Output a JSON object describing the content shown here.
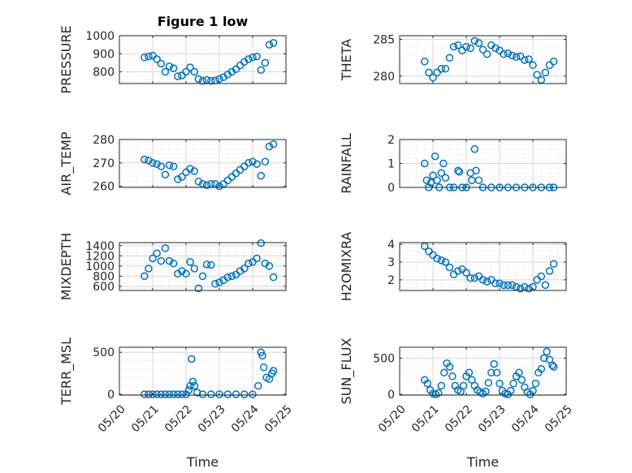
{
  "figure": {
    "title": "Figure 1 low",
    "colors": {
      "marker": "#0072BD",
      "axis": "#262626",
      "grid": "#d9d9d9",
      "minor_grid": "#ececec"
    }
  },
  "chart_data": [
    {
      "id": "pressure",
      "type": "scatter",
      "marker": "circle",
      "title": "Figure 1 low",
      "ylabel": "PRESSURE",
      "xlabel": "",
      "xlim": [
        "05/20",
        "05/25"
      ],
      "ylim": [
        735,
        1000
      ],
      "yticks": [
        800,
        900,
        1000
      ],
      "ytick_labels": [
        "800",
        "900",
        "1000"
      ],
      "xticks": [
        "05/20",
        "05/21",
        "05/22",
        "05/23",
        "05/24",
        "05/25"
      ],
      "show_xtick_labels": false,
      "grid": true,
      "minor_grid": true,
      "x": [
        "05/20 18:00",
        "05/20 21:00",
        "05/21 00:00",
        "05/21 03:00",
        "05/21 06:00",
        "05/21 09:00",
        "05/21 12:00",
        "05/21 15:00",
        "05/21 18:00",
        "05/21 21:00",
        "05/22 00:00",
        "05/22 03:00",
        "05/22 06:00",
        "05/22 09:00",
        "05/22 12:00",
        "05/22 15:00",
        "05/22 18:00",
        "05/22 21:00",
        "05/23 00:00",
        "05/23 03:00",
        "05/23 06:00",
        "05/23 09:00",
        "05/23 12:00",
        "05/23 15:00",
        "05/23 18:00",
        "05/23 21:00",
        "05/24 00:00",
        "05/24 03:00",
        "05/24 06:00",
        "05/24 09:00",
        "05/24 12:00",
        "05/24 15:00"
      ],
      "y": [
        880,
        885,
        890,
        870,
        845,
        800,
        830,
        820,
        775,
        780,
        800,
        825,
        800,
        760,
        750,
        755,
        750,
        752,
        760,
        770,
        785,
        800,
        815,
        835,
        855,
        870,
        880,
        885,
        810,
        850,
        950,
        960
      ]
    },
    {
      "id": "theta",
      "type": "scatter",
      "marker": "circle",
      "title": "",
      "ylabel": "THETA",
      "xlabel": "",
      "xlim": [
        "05/20",
        "05/25"
      ],
      "ylim": [
        279,
        285.5
      ],
      "yticks": [
        280,
        285
      ],
      "ytick_labels": [
        "280",
        "285"
      ],
      "xticks": [
        "05/20",
        "05/21",
        "05/22",
        "05/23",
        "05/24",
        "05/25"
      ],
      "show_xtick_labels": false,
      "grid": true,
      "minor_grid": true,
      "x": [
        "05/20 18:00",
        "05/20 21:00",
        "05/21 00:00",
        "05/21 03:00",
        "05/21 06:00",
        "05/21 09:00",
        "05/21 12:00",
        "05/21 15:00",
        "05/21 18:00",
        "05/21 21:00",
        "05/22 00:00",
        "05/22 03:00",
        "05/22 06:00",
        "05/22 09:00",
        "05/22 12:00",
        "05/22 15:00",
        "05/22 18:00",
        "05/22 21:00",
        "05/23 00:00",
        "05/23 03:00",
        "05/23 06:00",
        "05/23 09:00",
        "05/23 12:00",
        "05/23 15:00",
        "05/23 18:00",
        "05/23 21:00",
        "05/24 00:00",
        "05/24 03:00",
        "05/24 06:00",
        "05/24 09:00",
        "05/24 12:00",
        "05/24 15:00"
      ],
      "y": [
        282,
        280.5,
        279.8,
        280.5,
        281,
        281,
        282.5,
        284,
        284.2,
        283.5,
        284,
        283.8,
        284.8,
        284.5,
        283.6,
        283,
        284.2,
        283.8,
        283.5,
        283,
        283.1,
        282.8,
        282.6,
        282.7,
        282.2,
        282.3,
        281.5,
        280.2,
        279.5,
        280.5,
        281.5,
        282
      ]
    },
    {
      "id": "air_temp",
      "type": "scatter",
      "marker": "circle",
      "title": "",
      "ylabel": "AIR_TEMP",
      "xlabel": "",
      "xlim": [
        "05/20",
        "05/25"
      ],
      "ylim": [
        259.5,
        280
      ],
      "yticks": [
        260,
        270,
        280
      ],
      "ytick_labels": [
        "260",
        "270",
        "280"
      ],
      "xticks": [
        "05/20",
        "05/21",
        "05/22",
        "05/23",
        "05/24",
        "05/25"
      ],
      "show_xtick_labels": false,
      "grid": true,
      "minor_grid": true,
      "x": [
        "05/20 18:00",
        "05/20 21:00",
        "05/21 00:00",
        "05/21 03:00",
        "05/21 06:00",
        "05/21 09:00",
        "05/21 12:00",
        "05/21 15:00",
        "05/21 18:00",
        "05/21 21:00",
        "05/22 00:00",
        "05/22 03:00",
        "05/22 06:00",
        "05/22 09:00",
        "05/22 12:00",
        "05/22 15:00",
        "05/22 18:00",
        "05/22 21:00",
        "05/23 00:00",
        "05/23 03:00",
        "05/23 06:00",
        "05/23 09:00",
        "05/23 12:00",
        "05/23 15:00",
        "05/23 18:00",
        "05/23 21:00",
        "05/24 00:00",
        "05/24 03:00",
        "05/24 06:00",
        "05/24 09:00",
        "05/24 12:00",
        "05/24 15:00"
      ],
      "y": [
        271.5,
        271,
        270,
        269.5,
        268.5,
        265,
        269,
        268.5,
        263,
        264,
        266,
        267.5,
        266.5,
        262,
        261,
        260.5,
        261,
        261,
        260,
        261,
        262.5,
        264,
        265.5,
        267,
        268.5,
        270,
        270.5,
        269.5,
        264.5,
        270.5,
        277,
        278
      ]
    },
    {
      "id": "rainfall",
      "type": "scatter",
      "marker": "circle",
      "title": "",
      "ylabel": "RAINFALL",
      "xlabel": "",
      "xlim": [
        "05/20",
        "05/25"
      ],
      "ylim": [
        0,
        2
      ],
      "yticks": [
        0,
        1,
        2
      ],
      "ytick_labels": [
        "0",
        "1",
        "2"
      ],
      "xticks": [
        "05/20",
        "05/21",
        "05/22",
        "05/23",
        "05/24",
        "05/25"
      ],
      "show_xtick_labels": false,
      "grid": true,
      "minor_grid": true,
      "x": [
        "05/20 18:00",
        "05/20 19:30",
        "05/20 21:00",
        "05/20 22:30",
        "05/21 00:00",
        "05/21 01:30",
        "05/21 03:00",
        "05/21 04:30",
        "05/21 06:00",
        "05/21 07:30",
        "05/21 09:00",
        "05/21 12:00",
        "05/21 15:00",
        "05/21 18:00",
        "05/21 19:00",
        "05/21 21:00",
        "05/22 00:00",
        "05/22 03:00",
        "05/22 04:00",
        "05/22 06:00",
        "05/22 07:00",
        "05/22 09:00",
        "05/22 12:00",
        "05/22 18:00",
        "05/23 00:00",
        "05/23 06:00",
        "05/23 12:00",
        "05/23 18:00",
        "05/24 00:00",
        "05/24 06:00",
        "05/24 12:00",
        "05/24 15:00"
      ],
      "y": [
        1.0,
        0.3,
        0,
        0.2,
        0.5,
        1.3,
        0.3,
        0,
        0.6,
        1.0,
        0.4,
        0,
        0,
        0.7,
        0.65,
        0,
        0,
        0.6,
        0.3,
        1.6,
        0.7,
        0.3,
        0,
        0,
        0,
        0,
        0,
        0,
        0,
        0,
        0,
        0
      ]
    },
    {
      "id": "mixdepth",
      "type": "scatter",
      "marker": "circle",
      "title": "",
      "ylabel": "MIXDEPTH",
      "xlabel": "",
      "xlim": [
        "05/20",
        "05/25"
      ],
      "ylim": [
        520,
        1460
      ],
      "yticks": [
        600,
        800,
        1000,
        1200,
        1400
      ],
      "ytick_labels": [
        "600",
        "800",
        "1000",
        "1200",
        "1400"
      ],
      "xticks": [
        "05/20",
        "05/21",
        "05/22",
        "05/23",
        "05/24",
        "05/25"
      ],
      "show_xtick_labels": false,
      "grid": true,
      "minor_grid": true,
      "x": [
        "05/20 18:00",
        "05/20 21:00",
        "05/21 00:00",
        "05/21 03:00",
        "05/21 06:00",
        "05/21 09:00",
        "05/21 12:00",
        "05/21 15:00",
        "05/21 18:00",
        "05/21 21:00",
        "05/22 00:00",
        "05/22 03:00",
        "05/22 06:00",
        "05/22 09:00",
        "05/22 12:00",
        "05/22 15:00",
        "05/22 18:00",
        "05/22 21:00",
        "05/23 00:00",
        "05/23 03:00",
        "05/23 06:00",
        "05/23 09:00",
        "05/23 12:00",
        "05/23 15:00",
        "05/23 18:00",
        "05/23 21:00",
        "05/24 00:00",
        "05/24 03:00",
        "05/24 06:00",
        "05/24 09:00",
        "05/24 12:00",
        "05/24 15:00"
      ],
      "y": [
        800,
        950,
        1150,
        1250,
        1100,
        1350,
        1100,
        1050,
        850,
        900,
        850,
        1080,
        950,
        560,
        800,
        1030,
        1020,
        650,
        680,
        720,
        780,
        800,
        830,
        900,
        950,
        1050,
        1080,
        1150,
        1450,
        1050,
        1000,
        780
      ]
    },
    {
      "id": "h2omixra",
      "type": "scatter",
      "marker": "circle",
      "title": "",
      "ylabel": "H2OMIXRA",
      "xlabel": "",
      "xlim": [
        "05/20",
        "05/25"
      ],
      "ylim": [
        1.4,
        4.1
      ],
      "yticks": [
        2,
        3,
        4
      ],
      "ytick_labels": [
        "2",
        "3",
        "4"
      ],
      "xticks": [
        "05/20",
        "05/21",
        "05/22",
        "05/23",
        "05/24",
        "05/25"
      ],
      "show_xtick_labels": false,
      "grid": true,
      "minor_grid": true,
      "x": [
        "05/20 18:00",
        "05/20 21:00",
        "05/21 00:00",
        "05/21 03:00",
        "05/21 06:00",
        "05/21 09:00",
        "05/21 12:00",
        "05/21 15:00",
        "05/21 18:00",
        "05/21 21:00",
        "05/22 00:00",
        "05/22 03:00",
        "05/22 06:00",
        "05/22 09:00",
        "05/22 12:00",
        "05/22 15:00",
        "05/22 18:00",
        "05/22 21:00",
        "05/23 00:00",
        "05/23 03:00",
        "05/23 06:00",
        "05/23 09:00",
        "05/23 12:00",
        "05/23 15:00",
        "05/23 18:00",
        "05/23 21:00",
        "05/24 00:00",
        "05/24 03:00",
        "05/24 06:00",
        "05/24 09:00",
        "05/24 12:00",
        "05/24 15:00"
      ],
      "y": [
        3.9,
        3.6,
        3.4,
        3.2,
        3.1,
        3.0,
        2.7,
        2.3,
        2.5,
        2.6,
        2.4,
        2.1,
        2.1,
        2.2,
        2.0,
        1.9,
        2.0,
        1.8,
        1.8,
        1.7,
        1.7,
        1.7,
        1.6,
        1.5,
        1.6,
        1.5,
        1.6,
        2.0,
        2.2,
        1.7,
        2.5,
        2.9
      ]
    },
    {
      "id": "terr_msl",
      "type": "scatter",
      "marker": "circle",
      "title": "",
      "ylabel": "TERR_MSL",
      "xlabel": "Time",
      "xlim": [
        "05/20",
        "05/25"
      ],
      "ylim": [
        -10,
        560
      ],
      "yticks": [
        0,
        500
      ],
      "ytick_labels": [
        "0",
        "500"
      ],
      "xticks": [
        "05/20",
        "05/21",
        "05/22",
        "05/23",
        "05/24",
        "05/25"
      ],
      "show_xtick_labels": true,
      "grid": true,
      "minor_grid": true,
      "x": [
        "05/20 18:00",
        "05/20 21:00",
        "05/21 00:00",
        "05/21 03:00",
        "05/21 06:00",
        "05/21 09:00",
        "05/21 12:00",
        "05/21 15:00",
        "05/21 18:00",
        "05/21 21:00",
        "05/22 00:00",
        "05/22 02:00",
        "05/22 03:00",
        "05/22 04:00",
        "05/22 05:00",
        "05/22 06:00",
        "05/22 08:00",
        "05/22 12:00",
        "05/22 18:00",
        "05/23 00:00",
        "05/23 06:00",
        "05/23 12:00",
        "05/23 18:00",
        "05/24 00:00",
        "05/24 04:00",
        "05/24 06:00",
        "05/24 07:00",
        "05/24 08:00",
        "05/24 10:00",
        "05/24 12:00",
        "05/24 14:00",
        "05/24 15:00"
      ],
      "y": [
        0,
        0,
        0,
        0,
        0,
        0,
        0,
        0,
        0,
        0,
        0,
        50,
        100,
        420,
        150,
        100,
        20,
        0,
        0,
        0,
        0,
        0,
        0,
        0,
        100,
        500,
        460,
        320,
        200,
        180,
        250,
        280
      ]
    },
    {
      "id": "sun_flux",
      "type": "scatter",
      "marker": "circle",
      "title": "",
      "ylabel": "SUN_FLUX",
      "xlabel": "Time",
      "xlim": [
        "05/20",
        "05/25"
      ],
      "ylim": [
        -10,
        650
      ],
      "yticks": [
        0,
        500
      ],
      "ytick_labels": [
        "0",
        "500"
      ],
      "xticks": [
        "05/20",
        "05/21",
        "05/22",
        "05/23",
        "05/24",
        "05/25"
      ],
      "show_xtick_labels": true,
      "grid": true,
      "minor_grid": true,
      "x": [
        "05/20 18:00",
        "05/20 20:00",
        "05/20 22:00",
        "05/21 00:00",
        "05/21 02:00",
        "05/21 04:00",
        "05/21 06:00",
        "05/21 08:00",
        "05/21 10:00",
        "05/21 12:00",
        "05/21 14:00",
        "05/21 16:00",
        "05/21 18:00",
        "05/21 20:00",
        "05/21 22:00",
        "05/22 00:00",
        "05/22 02:00",
        "05/22 04:00",
        "05/22 06:00",
        "05/22 08:00",
        "05/22 10:00",
        "05/22 12:00",
        "05/22 14:00",
        "05/22 16:00",
        "05/22 18:00",
        "05/22 20:00",
        "05/22 22:00",
        "05/23 00:00",
        "05/23 02:00",
        "05/23 04:00",
        "05/23 06:00",
        "05/23 08:00",
        "05/23 10:00",
        "05/23 12:00",
        "05/23 14:00",
        "05/23 16:00",
        "05/23 18:00",
        "05/23 20:00",
        "05/23 22:00",
        "05/24 00:00",
        "05/24 02:00",
        "05/24 04:00",
        "05/24 06:00",
        "05/24 08:00",
        "05/24 10:00",
        "05/24 12:00",
        "05/24 14:00",
        "05/24 15:00"
      ],
      "y": [
        200,
        150,
        60,
        10,
        0,
        20,
        120,
        300,
        430,
        380,
        250,
        120,
        60,
        40,
        120,
        250,
        300,
        200,
        120,
        60,
        30,
        10,
        40,
        160,
        300,
        420,
        300,
        150,
        50,
        10,
        0,
        50,
        150,
        250,
        300,
        200,
        100,
        30,
        0,
        50,
        150,
        300,
        350,
        500,
        590,
        480,
        400,
        380
      ]
    }
  ]
}
